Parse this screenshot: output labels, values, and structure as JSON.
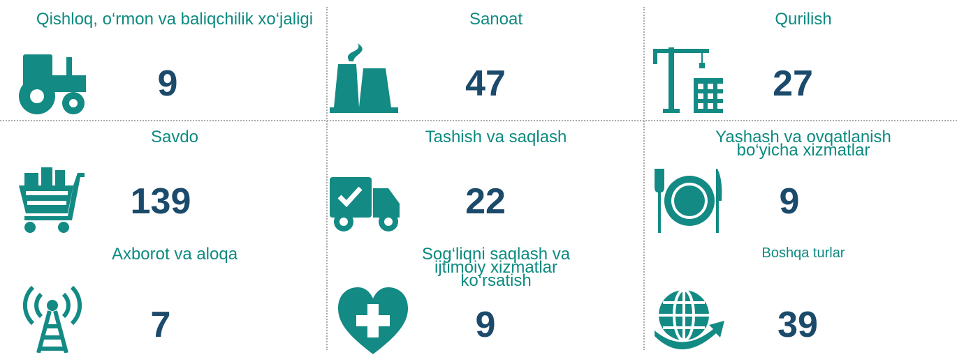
{
  "items": [
    {
      "label": "Qishloq, o‘rmon va baliqchilik xo‘jaligi",
      "value": "9"
    },
    {
      "label": "Sanoat",
      "value": "47"
    },
    {
      "label": "Qurilish",
      "value": "27"
    },
    {
      "label": "Savdo",
      "value": "139"
    },
    {
      "label": "Tashish va saqlash",
      "value": "22"
    },
    {
      "label": "Yashash va ovqatlanish bo‘yicha xizmatlar",
      "value": "9"
    },
    {
      "label": "Axborot va aloqa",
      "value": "7"
    },
    {
      "label": "Sog‘liqni saqlash va ijtimoiy xizmatlar ko‘rsatish",
      "value": "9"
    },
    {
      "label": "Boshqa turlar",
      "value": "39"
    }
  ]
}
